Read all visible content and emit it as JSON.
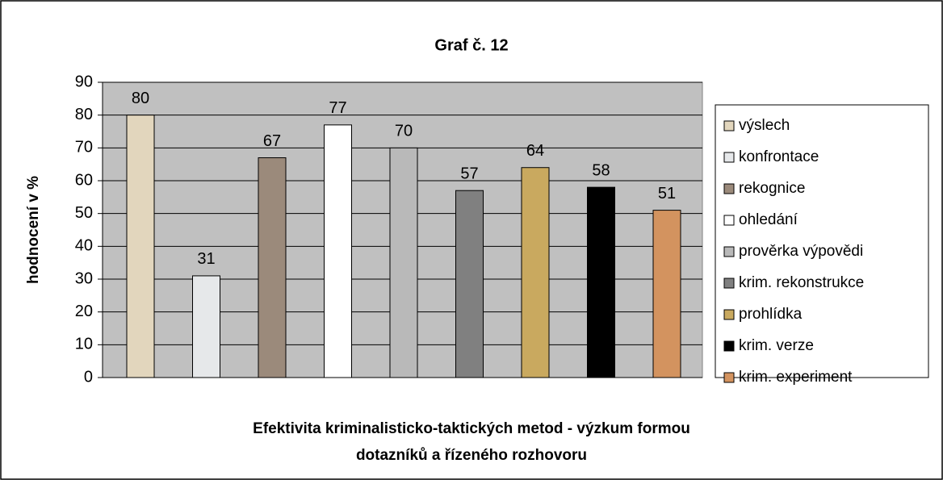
{
  "chart_data": {
    "type": "bar",
    "title": "Graf č. 12",
    "ylabel": "hodnocení v %",
    "xlabel": [
      "Efektivita kriminalisticko-taktických metod - výzkum formou",
      "dotazníků a řízeného rozhovoru"
    ],
    "categories": [
      "výslech",
      "konfrontace",
      "rekognice",
      "ohledání",
      "prověrka výpovědi",
      "krim. rekonstrukce",
      "prohlídka",
      "krim. verze",
      "krim. experiment"
    ],
    "values": [
      80,
      31,
      67,
      77,
      70,
      57,
      64,
      58,
      51
    ],
    "colors": [
      "#e2d6bd",
      "#e6e8ea",
      "#9b8a7b",
      "#ffffff",
      "#b9b9b9",
      "#808080",
      "#c9a95f",
      "#000000",
      "#d3935f"
    ],
    "ylim": [
      0,
      90
    ],
    "yticks": [
      0,
      10,
      20,
      30,
      40,
      50,
      60,
      70,
      80,
      90
    ],
    "grid": true
  }
}
